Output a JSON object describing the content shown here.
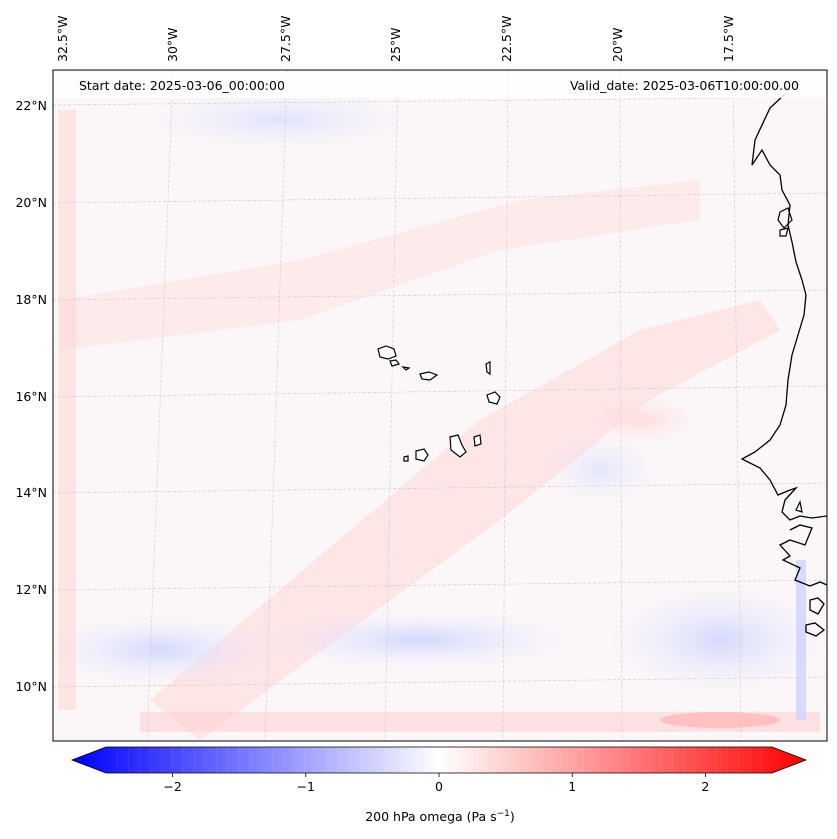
{
  "map": {
    "start_date": "Start date: 2025-03-06_00:00:00",
    "valid_date": "Valid_date: 2025-03-06T10:00:00.00",
    "lon_labels": [
      "32.5°W",
      "30°W",
      "27.5°W",
      "25°W",
      "22.5°W",
      "20°W",
      "17.5°W"
    ],
    "lat_labels": [
      "22°N",
      "20°N",
      "18°N",
      "16°N",
      "14°N",
      "12°N",
      "10°N"
    ]
  },
  "colorbar": {
    "label_prefix": "200 hPa omega (Pa s",
    "label_exp": "−1",
    "label_suffix": ")",
    "ticks": [
      "−2",
      "−1",
      "0",
      "1",
      "2"
    ],
    "tick_values": [
      -2,
      -1,
      0,
      1,
      2
    ],
    "range": [
      -2.5,
      2.5
    ],
    "colors": {
      "min": "#0000ff",
      "mid": "#ffffff",
      "max": "#ff0000"
    }
  },
  "colors": {
    "coast": "#000000",
    "grid": "#bfbfbf",
    "frame": "#000000"
  }
}
